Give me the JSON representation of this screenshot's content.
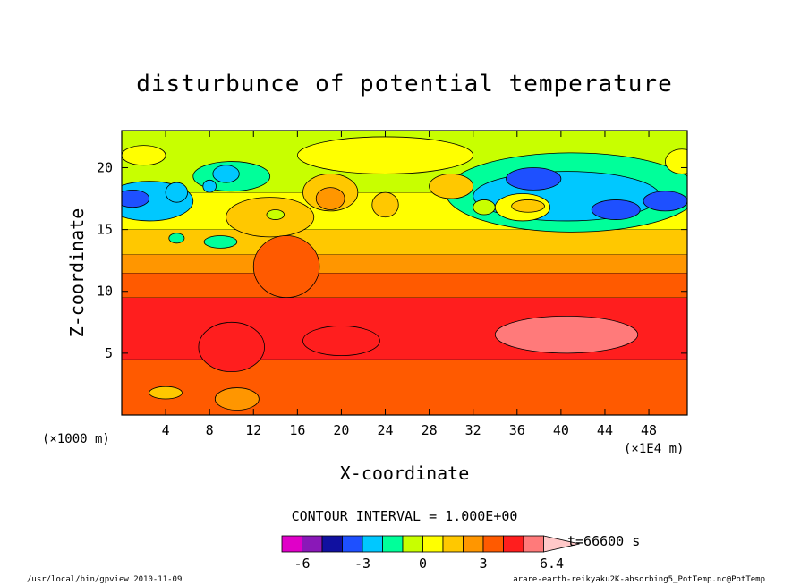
{
  "chart_data": {
    "type": "heatmap",
    "title": "disturbunce of potential temperature",
    "xlabel": "X-coordinate",
    "ylabel": "Z-coordinate",
    "x_unit": "(×1E4 m)",
    "y_unit": "(×1000 m)",
    "xlim": [
      0,
      51.5
    ],
    "ylim": [
      0,
      23
    ],
    "x_ticks": [
      4,
      8,
      12,
      16,
      20,
      24,
      28,
      32,
      36,
      40,
      44,
      48
    ],
    "y_ticks": [
      5,
      10,
      15,
      20
    ],
    "contour_interval": "CONTOUR INTERVAL = 1.000E+00",
    "time_label": "t=66600 s",
    "colorbar": {
      "colors": [
        "#e000c8",
        "#8a18b8",
        "#1010a0",
        "#1e50ff",
        "#00c8ff",
        "#00ff9a",
        "#c8ff00",
        "#ffff00",
        "#ffc800",
        "#ff9600",
        "#ff5a00",
        "#ff1e1e",
        "#ff7a7a",
        "#ffc8c8"
      ],
      "tick_labels": [
        "-6",
        "-3",
        "0",
        "3",
        "6.4"
      ],
      "tick_values": [
        -6,
        -3,
        0,
        3,
        6.4
      ]
    },
    "bands": [
      {
        "z_top": 4.5,
        "value": 3.5
      },
      {
        "z_top": 9.5,
        "value": 4.5
      },
      {
        "z_top": 11.5,
        "value": 3.5
      },
      {
        "z_top": 13.0,
        "value": 2.5
      },
      {
        "z_top": 15.0,
        "value": 1.5
      },
      {
        "z_top": 18.0,
        "value": 0.5
      },
      {
        "z_top": 23.0,
        "value": -0.5
      }
    ],
    "blobs": [
      {
        "x": 40.5,
        "z": 6.5,
        "rx": 6.5,
        "rz": 1.5,
        "value": 5.5
      },
      {
        "x": 20.0,
        "z": 6.0,
        "rx": 3.5,
        "rz": 1.2,
        "value": 4.5
      },
      {
        "x": 10.0,
        "z": 5.5,
        "rx": 3.0,
        "rz": 2.0,
        "value": 4.5
      },
      {
        "x": 10.5,
        "z": 1.3,
        "rx": 2.0,
        "rz": 0.9,
        "value": 2.5
      },
      {
        "x": 4.0,
        "z": 1.8,
        "rx": 1.5,
        "rz": 0.5,
        "value": 1.5
      },
      {
        "x": 41.0,
        "z": 18.0,
        "rx": 11.5,
        "rz": 3.2,
        "value": -1.5
      },
      {
        "x": 40.5,
        "z": 17.7,
        "rx": 8.5,
        "rz": 2.0,
        "value": -2.5
      },
      {
        "x": 37.5,
        "z": 19.1,
        "rx": 2.5,
        "rz": 0.9,
        "value": -3.5
      },
      {
        "x": 45.0,
        "z": 16.6,
        "rx": 2.2,
        "rz": 0.8,
        "value": -3.5
      },
      {
        "x": 49.5,
        "z": 17.3,
        "rx": 2.0,
        "rz": 0.8,
        "value": -3.5
      },
      {
        "x": 36.5,
        "z": 16.8,
        "rx": 2.5,
        "rz": 1.1,
        "value": 0.5
      },
      {
        "x": 37.0,
        "z": 16.9,
        "rx": 1.5,
        "rz": 0.5,
        "value": 1.5
      },
      {
        "x": 33.0,
        "z": 16.8,
        "rx": 1.0,
        "rz": 0.6,
        "value": -0.5
      },
      {
        "x": 2.5,
        "z": 17.3,
        "rx": 4.0,
        "rz": 1.6,
        "value": -2.5
      },
      {
        "x": 1.0,
        "z": 17.5,
        "rx": 1.5,
        "rz": 0.7,
        "value": -3.5
      },
      {
        "x": 10.0,
        "z": 19.3,
        "rx": 3.5,
        "rz": 1.2,
        "value": -1.5
      },
      {
        "x": 9.5,
        "z": 19.5,
        "rx": 1.2,
        "rz": 0.7,
        "value": -2.5
      },
      {
        "x": 5.0,
        "z": 18.0,
        "rx": 1.0,
        "rz": 0.8,
        "value": -2.5
      },
      {
        "x": 8.0,
        "z": 18.5,
        "rx": 0.6,
        "rz": 0.5,
        "value": -2.5
      },
      {
        "x": 19.0,
        "z": 18.0,
        "rx": 2.5,
        "rz": 1.5,
        "value": 1.5
      },
      {
        "x": 19.0,
        "z": 17.5,
        "rx": 1.3,
        "rz": 0.9,
        "value": 2.5
      },
      {
        "x": 24.0,
        "z": 17.0,
        "rx": 1.2,
        "rz": 1.0,
        "value": 1.5
      },
      {
        "x": 30.0,
        "z": 18.5,
        "rx": 2.0,
        "rz": 1.0,
        "value": 1.5
      },
      {
        "x": 13.5,
        "z": 16.0,
        "rx": 4.0,
        "rz": 1.6,
        "value": 1.5
      },
      {
        "x": 9.0,
        "z": 14.0,
        "rx": 1.5,
        "rz": 0.5,
        "value": -1.5
      },
      {
        "x": 5.0,
        "z": 14.3,
        "rx": 0.7,
        "rz": 0.4,
        "value": -1.5
      },
      {
        "x": 14.0,
        "z": 16.2,
        "rx": 0.8,
        "rz": 0.4,
        "value": -0.5
      },
      {
        "x": 15.0,
        "z": 12.0,
        "rx": 3.0,
        "rz": 2.5,
        "value": 3.0
      },
      {
        "x": 24.0,
        "z": 21.0,
        "rx": 8.0,
        "rz": 1.5,
        "value": 0.5
      },
      {
        "x": 2.0,
        "z": 21.0,
        "rx": 2.0,
        "rz": 0.8,
        "value": 0.5
      },
      {
        "x": 51.0,
        "z": 20.5,
        "rx": 1.5,
        "rz": 1.0,
        "value": 0.5
      }
    ]
  },
  "footer": {
    "left": "/usr/local/bin/gpview  2010-11-09",
    "right": "arare-earth-reikyaku2K-absorbing5_PotTemp.nc@PotTemp"
  }
}
